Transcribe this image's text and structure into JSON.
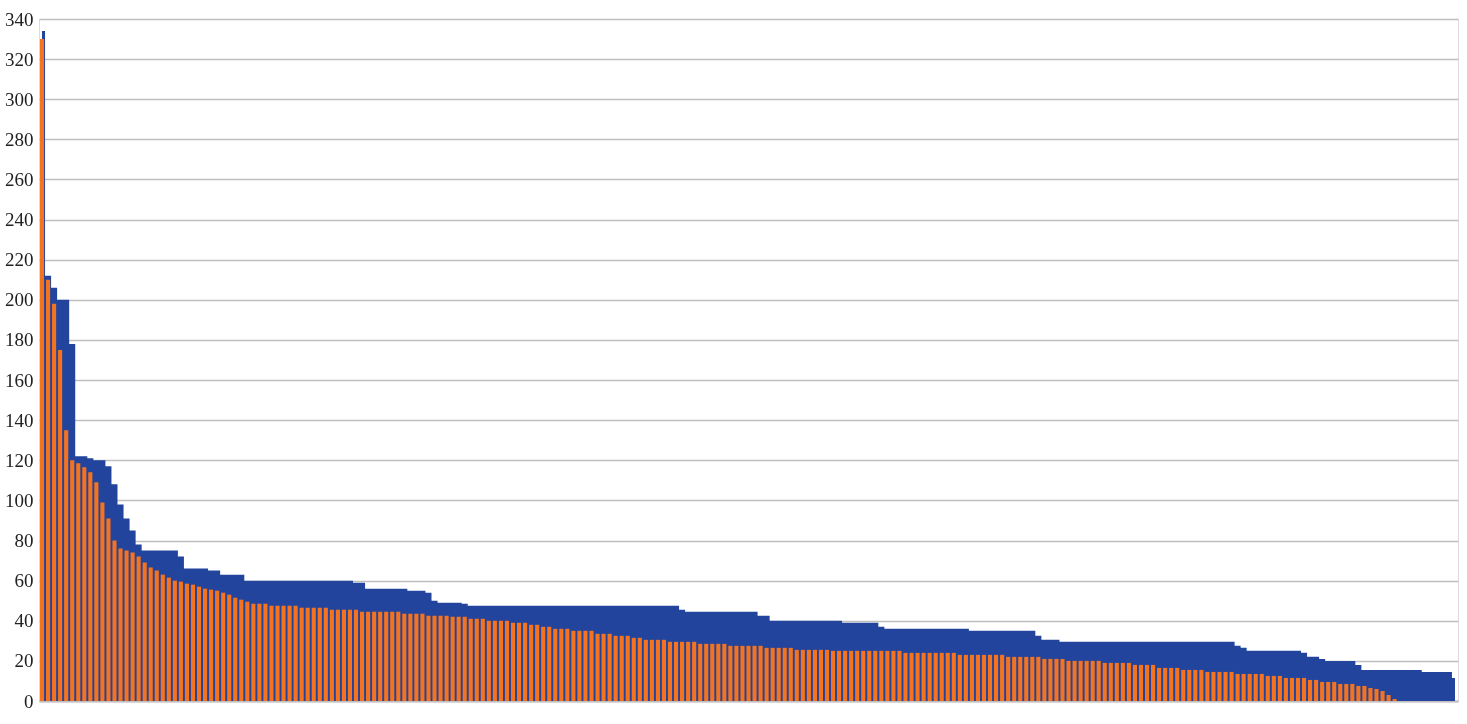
{
  "chart_data": {
    "type": "bar",
    "categories": [
      null,
      null,
      null,
      null,
      null,
      null,
      null,
      null,
      null,
      null,
      null,
      null,
      null,
      null,
      null,
      null,
      null,
      null,
      null,
      null,
      null,
      null,
      null,
      null,
      null,
      null,
      null,
      null,
      null,
      null,
      null,
      null,
      null,
      null,
      null,
      null,
      null,
      null,
      null,
      null,
      null,
      null,
      null,
      null,
      null,
      null,
      null,
      null,
      null,
      null,
      null,
      null,
      null,
      null,
      null,
      null,
      null,
      null,
      null,
      null,
      null,
      null,
      null,
      null,
      null,
      null,
      null,
      null,
      null,
      null,
      null,
      null,
      null,
      null,
      null,
      null,
      null,
      null,
      null,
      null,
      null,
      null,
      null,
      null,
      null,
      null,
      null,
      null,
      null,
      null,
      null,
      null,
      null,
      null,
      null,
      null,
      null,
      null,
      null,
      null,
      null,
      null,
      null,
      null,
      null,
      null,
      null,
      null,
      null,
      null,
      null,
      null,
      null,
      null,
      null,
      null,
      null,
      null,
      null,
      null,
      null,
      null,
      null,
      null,
      null,
      null,
      null,
      null,
      null,
      null,
      null,
      null,
      null,
      null,
      null,
      null,
      null,
      null,
      null,
      null,
      null,
      null,
      null,
      null,
      null,
      null,
      null,
      null,
      null,
      null,
      null,
      null,
      null,
      null,
      null,
      null,
      null,
      null,
      null,
      null,
      null,
      null,
      null,
      null,
      null,
      null,
      null,
      null,
      null,
      null,
      null,
      null,
      null,
      null,
      null,
      null,
      null,
      null,
      null,
      null,
      null,
      null,
      null,
      null,
      null,
      null,
      null,
      null,
      null,
      null,
      null,
      null,
      null,
      null,
      null,
      null,
      null,
      null,
      null,
      null,
      null,
      null,
      null,
      null,
      null,
      null,
      null,
      null,
      null,
      null,
      null,
      null,
      null,
      null,
      null,
      null,
      null,
      null,
      null,
      null,
      null,
      null,
      null,
      null,
      null,
      null,
      null,
      null,
      null,
      null,
      null,
      null,
      null,
      null,
      null
    ],
    "series": [
      {
        "type": "area",
        "color": "#22449c",
        "values": [
          334,
          212,
          206,
          200,
          200,
          178,
          122,
          122,
          121,
          120,
          120,
          117,
          108,
          98,
          91,
          85,
          78,
          75,
          75,
          75,
          75,
          75,
          75,
          72,
          66,
          66,
          66,
          66,
          65,
          65,
          63,
          63,
          63,
          63,
          60,
          60,
          60,
          60,
          60,
          60,
          60,
          60,
          60,
          60,
          60,
          60,
          60,
          60,
          60,
          60,
          60,
          60,
          59,
          59,
          56,
          56,
          56,
          56,
          56,
          56,
          56,
          55,
          55,
          55,
          54,
          50,
          49,
          49,
          49,
          49,
          48.5,
          47.5,
          47.5,
          47.5,
          47.5,
          47.5,
          47.5,
          47.5,
          47.5,
          47.5,
          47.5,
          47.5,
          47.5,
          47.5,
          47.5,
          47.5,
          47.5,
          47.5,
          47.5,
          47.5,
          47.5,
          47.5,
          47.5,
          47.5,
          47.5,
          47.5,
          47.5,
          47.5,
          47.5,
          47.5,
          47.5,
          47.5,
          47.5,
          47.5,
          47.5,
          47.5,
          45.5,
          44.5,
          44.5,
          44.5,
          44.5,
          44.5,
          44.5,
          44.5,
          44.5,
          44.5,
          44.5,
          44.5,
          44.5,
          42.5,
          42.5,
          40,
          40,
          40,
          40,
          40,
          40,
          40,
          40,
          40,
          40,
          40,
          40,
          39,
          39,
          39,
          39,
          39,
          39,
          37,
          36,
          36,
          36,
          36,
          36,
          36,
          36,
          36,
          36,
          36,
          36,
          36,
          36,
          36,
          35,
          35,
          35,
          35,
          35,
          35,
          35,
          35,
          35,
          35,
          35,
          32.5,
          30.5,
          30.5,
          30.5,
          29.5,
          29.5,
          29.5,
          29.5,
          29.5,
          29.5,
          29.5,
          29.5,
          29.5,
          29.5,
          29.5,
          29.5,
          29.5,
          29.5,
          29.5,
          29.5,
          29.5,
          29.5,
          29.5,
          29.5,
          29.5,
          29.5,
          29.5,
          29.5,
          29.5,
          29.5,
          29.5,
          29.5,
          29.5,
          27.5,
          26.5,
          25,
          25,
          25,
          25,
          25,
          25,
          25,
          25,
          25,
          24,
          22,
          22,
          21,
          20,
          20,
          20,
          20,
          20,
          18,
          15.5,
          15.5,
          15.5,
          15.5,
          15.5,
          15.5,
          15.5,
          15.5,
          15.5,
          15.5,
          14.5,
          14.5,
          14.5,
          14.5,
          14.5,
          11.5
        ]
      },
      {
        "color": "#f47320",
        "values": [
          330,
          210,
          198,
          175,
          135,
          120,
          118.5,
          116.5,
          114,
          109,
          99,
          91,
          80,
          76,
          75,
          74,
          72,
          69,
          66.5,
          65,
          63,
          61.5,
          60,
          59.5,
          58.5,
          58,
          57,
          56,
          55.5,
          55,
          54,
          53,
          51.5,
          50.5,
          49.5,
          48.5,
          48.5,
          48.5,
          47.5,
          47.5,
          47.5,
          47.5,
          47.5,
          46.5,
          46.5,
          46.5,
          46.5,
          46.5,
          45.5,
          45.5,
          45.5,
          45.5,
          45.5,
          44.5,
          44.5,
          44.5,
          44.5,
          44.5,
          44.5,
          44.5,
          43.5,
          43.5,
          43.5,
          43.5,
          42.5,
          42.5,
          42.5,
          42.5,
          42,
          42,
          42,
          41,
          41,
          41,
          40,
          40,
          40,
          40,
          39,
          39,
          39,
          38,
          38,
          37,
          37,
          36,
          36,
          36,
          35,
          35,
          35,
          35,
          33.5,
          33.5,
          33.5,
          32.5,
          32.5,
          32.5,
          31.5,
          31.5,
          30.5,
          30.5,
          30.5,
          30.5,
          29.5,
          29.5,
          29.5,
          29.5,
          29.5,
          28.5,
          28.5,
          28.5,
          28.5,
          28.5,
          27.5,
          27.5,
          27.5,
          27.5,
          27.5,
          27.5,
          26.5,
          26.5,
          26.5,
          26.5,
          26.5,
          25.5,
          25.5,
          25.5,
          25.5,
          25.5,
          25.5,
          25,
          25,
          25,
          25,
          25,
          25,
          25,
          25,
          25,
          25,
          25,
          25,
          24,
          24,
          24,
          24,
          24,
          24,
          24,
          24,
          24,
          23,
          23,
          23,
          23,
          23,
          23,
          23,
          23,
          22,
          22,
          22,
          22,
          22,
          22,
          21,
          21,
          21,
          21,
          20,
          20,
          20,
          20,
          20,
          20,
          19,
          19,
          19,
          19,
          19,
          18,
          18,
          18,
          18,
          16.5,
          16.5,
          16.5,
          16.5,
          15.5,
          15.5,
          15.5,
          15.5,
          14.5,
          14.5,
          14.5,
          14.5,
          14.5,
          13.5,
          13.5,
          13.5,
          13.5,
          13.5,
          12.5,
          12.5,
          12.5,
          11.5,
          11.5,
          11.5,
          11.5,
          10.5,
          10.5,
          9.5,
          9.5,
          9.5,
          8.5,
          8.5,
          8.5,
          7.5,
          7.5,
          6.5,
          6,
          5,
          3,
          1,
          null,
          null,
          null,
          null,
          null,
          null,
          null,
          null,
          null,
          null
        ]
      }
    ],
    "ylim": [
      0,
      340
    ],
    "yticks": [
      0,
      20,
      40,
      60,
      80,
      100,
      120,
      140,
      160,
      180,
      200,
      220,
      240,
      260,
      280,
      300,
      320,
      340
    ],
    "grid": "y",
    "tick_labels": "y"
  }
}
